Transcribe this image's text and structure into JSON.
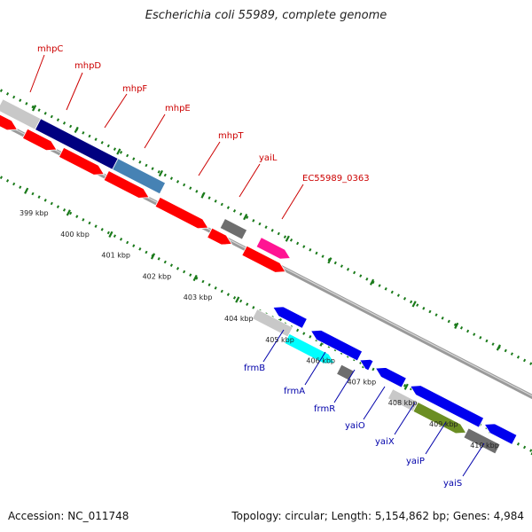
{
  "title": "Escherichia coli 55989, complete genome",
  "footer": {
    "accession": "Accession: NC_011748",
    "topology": "Topology: circular; Length: 5,154,862 bp; Genes: 4,984"
  },
  "colors": {
    "forward_label": "#cc0000",
    "reverse_label": "#0000aa",
    "tick": "#1a7a1a",
    "backbone": "#8a8a8a"
  },
  "scale_labels": [
    "399 kbp",
    "400 kbp",
    "401 kbp",
    "402 kbp",
    "403 kbp",
    "404 kbp",
    "405 kbp",
    "406 kbp",
    "407 kbp",
    "408 kbp",
    "409 kbp",
    "410 kbp"
  ],
  "forward_genes": [
    {
      "name": "mhpC",
      "color": "#ff0000"
    },
    {
      "name": "mhpD",
      "color": "#ff0000"
    },
    {
      "name": "mhpF",
      "color": "#ff0000"
    },
    {
      "name": "mhpE",
      "color": "#ff0000"
    },
    {
      "name": "mhpT",
      "color": "#ff0000"
    },
    {
      "name": "yaiL",
      "color": "#ff0000"
    },
    {
      "name": "EC55989_0363",
      "color": "#ff0000"
    }
  ],
  "reverse_genes": [
    {
      "name": "frmB",
      "color": "#0000ee"
    },
    {
      "name": "frmA",
      "color": "#0000ee"
    },
    {
      "name": "frmR",
      "color": "#0000ee"
    },
    {
      "name": "yaiO",
      "color": "#0000ee"
    },
    {
      "name": "yaiX",
      "color": "#0000ee"
    },
    {
      "name": "yaiP",
      "color": "#0000ee"
    },
    {
      "name": "yaiS",
      "color": "#0000ee"
    }
  ],
  "feature_colors": [
    "#c8c8c8",
    "#000080",
    "#4682b4",
    "#6e6e6e",
    "#ff1493",
    "#00ffff",
    "#6b8e23"
  ]
}
